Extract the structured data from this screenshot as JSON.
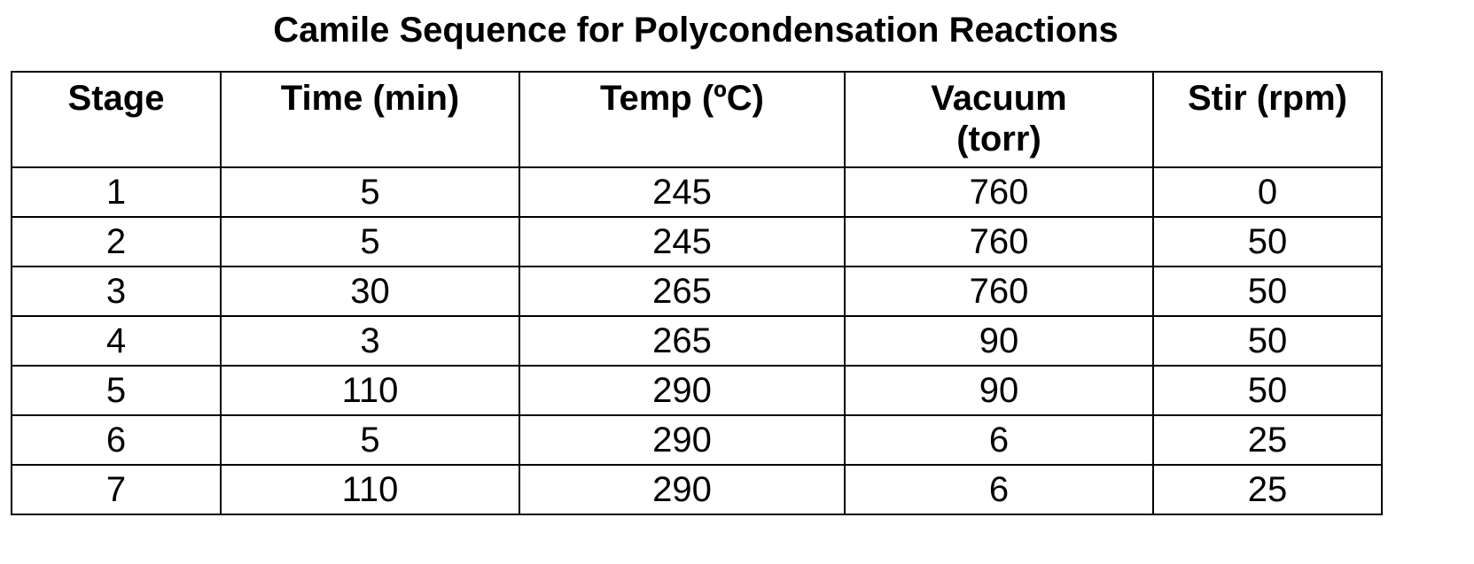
{
  "title": "Camile Sequence for Polycondensation Reactions",
  "table": {
    "header": [
      "Stage",
      "Time (min)",
      "Temp (ºC)",
      "Vacuum\n(torr)",
      "Stir (rpm)"
    ],
    "rows": [
      [
        1,
        5,
        245,
        760,
        0
      ],
      [
        2,
        5,
        245,
        760,
        50
      ],
      [
        3,
        30,
        265,
        760,
        50
      ],
      [
        4,
        3,
        265,
        90,
        50
      ],
      [
        5,
        110,
        290,
        90,
        50
      ],
      [
        6,
        5,
        290,
        6,
        25
      ],
      [
        7,
        110,
        290,
        6,
        25
      ]
    ]
  }
}
